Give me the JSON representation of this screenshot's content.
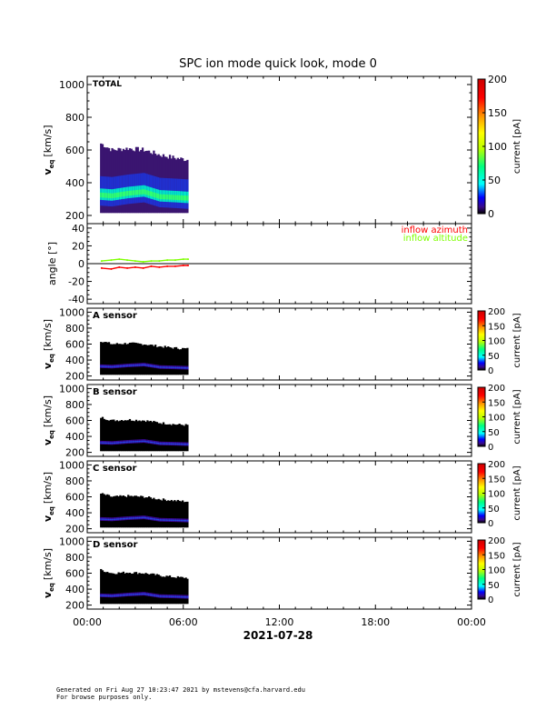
{
  "chart_data": [
    {
      "type": "heatmap",
      "panel": "total",
      "title": "SPC ion mode quick look, mode 0",
      "label": "TOTAL",
      "ylabel": "v",
      "ylabel_sub": "eq",
      "ylabel_unit": "[km/s]",
      "ylim": [
        150,
        1050
      ],
      "yticks": [
        200,
        400,
        600,
        800,
        1000
      ],
      "data_xrange_hours": [
        0.8,
        6.3
      ],
      "colorbar": {
        "label": "current [pA]",
        "range": [
          0,
          200
        ],
        "ticks": [
          0,
          50,
          100,
          150,
          200
        ]
      },
      "band": [
        {
          "t": 0.8,
          "core_kms": 320,
          "top_kms": 640
        },
        {
          "t": 1.5,
          "core_kms": 315,
          "top_kms": 600
        },
        {
          "t": 2.5,
          "core_kms": 330,
          "top_kms": 610
        },
        {
          "t": 3.5,
          "core_kms": 340,
          "top_kms": 600
        },
        {
          "t": 4.5,
          "core_kms": 310,
          "top_kms": 570
        },
        {
          "t": 5.5,
          "core_kms": 305,
          "top_kms": 550
        },
        {
          "t": 6.3,
          "core_kms": 300,
          "top_kms": 540
        }
      ]
    },
    {
      "type": "line",
      "panel": "angle",
      "ylabel": "angle [°]",
      "ylim": [
        -45,
        45
      ],
      "yticks": [
        -40,
        -20,
        0,
        20,
        40
      ],
      "series": [
        {
          "name": "inflow azimuth",
          "color": "#ff0000",
          "x": [
            0.9,
            1.5,
            2.0,
            2.5,
            3.0,
            3.5,
            4.0,
            4.5,
            5.0,
            5.5,
            6.0,
            6.3
          ],
          "y": [
            -5,
            -6,
            -4,
            -5,
            -4,
            -5,
            -3,
            -4,
            -3,
            -3,
            -2,
            -2
          ]
        },
        {
          "name": "inflow altitude",
          "color": "#7fff00",
          "x": [
            0.9,
            1.5,
            2.0,
            2.5,
            3.0,
            3.5,
            4.0,
            4.5,
            5.0,
            5.5,
            6.0,
            6.3
          ],
          "y": [
            3,
            4,
            5,
            4,
            3,
            2,
            3,
            3,
            4,
            4,
            5,
            5
          ]
        }
      ]
    },
    {
      "type": "heatmap",
      "panel": "A",
      "label": "A sensor",
      "ylabel": "v",
      "ylabel_sub": "eq",
      "ylabel_unit": "[km/s]",
      "ylim": [
        150,
        1050
      ],
      "yticks": [
        200,
        400,
        600,
        800,
        1000
      ],
      "colorbar": {
        "label": "current [pA]",
        "range": [
          0,
          200
        ],
        "ticks": [
          0,
          50,
          100,
          150,
          200
        ]
      }
    },
    {
      "type": "heatmap",
      "panel": "B",
      "label": "B sensor",
      "ylabel": "v",
      "ylabel_sub": "eq",
      "ylabel_unit": "[km/s]",
      "ylim": [
        150,
        1050
      ],
      "yticks": [
        200,
        400,
        600,
        800,
        1000
      ],
      "colorbar": {
        "label": "current [pA]",
        "range": [
          0,
          200
        ],
        "ticks": [
          0,
          50,
          100,
          150,
          200
        ]
      }
    },
    {
      "type": "heatmap",
      "panel": "C",
      "label": "C sensor",
      "ylabel": "v",
      "ylabel_sub": "eq",
      "ylabel_unit": "[km/s]",
      "ylim": [
        150,
        1050
      ],
      "yticks": [
        200,
        400,
        600,
        800,
        1000
      ],
      "colorbar": {
        "label": "current [pA]",
        "range": [
          0,
          200
        ],
        "ticks": [
          0,
          50,
          100,
          150,
          200
        ]
      }
    },
    {
      "type": "heatmap",
      "panel": "D",
      "label": "D sensor",
      "ylabel": "v",
      "ylabel_sub": "eq",
      "ylabel_unit": "[km/s]",
      "ylim": [
        150,
        1050
      ],
      "yticks": [
        200,
        400,
        600,
        800,
        1000
      ],
      "colorbar": {
        "label": "current [pA]",
        "range": [
          0,
          200
        ],
        "ticks": [
          0,
          50,
          100,
          150,
          200
        ]
      }
    }
  ],
  "xaxis": {
    "ticks": [
      "00:00",
      "06:00",
      "12:00",
      "18:00",
      "00:00"
    ],
    "tick_hours": [
      0,
      6,
      12,
      18,
      24
    ],
    "date": "2021-07-28"
  },
  "footer": {
    "line1": "Generated on Fri Aug 27 10:23:47 2021 by mstevens@cfa.harvard.edu",
    "line2": "For browse purposes only."
  }
}
